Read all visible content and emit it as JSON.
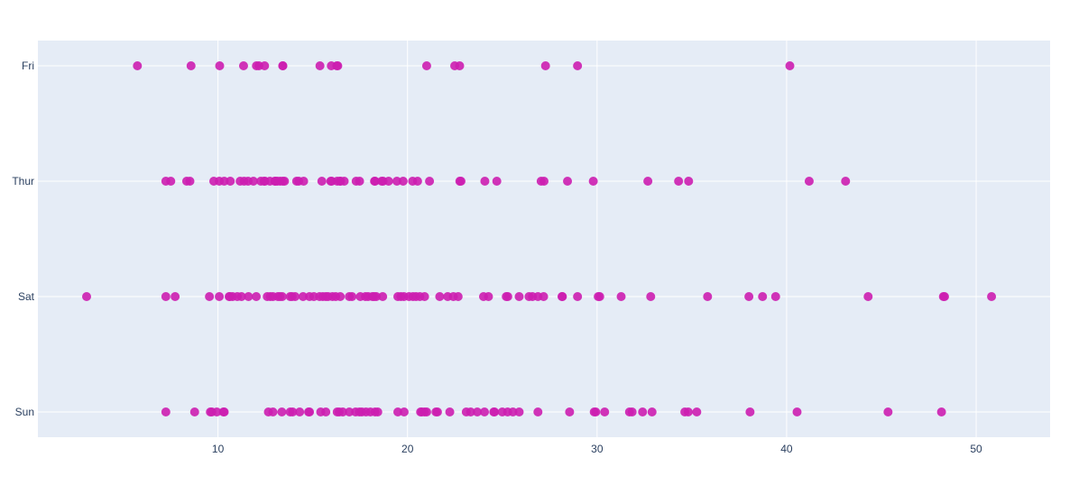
{
  "chart_data": {
    "type": "scatter",
    "orientation": "horizontal-strip",
    "title": "",
    "xlabel": "",
    "ylabel": "",
    "categories": [
      "Sun",
      "Sat",
      "Thur",
      "Fri"
    ],
    "xlim": [
      0.5,
      53.9
    ],
    "xticks": [
      10,
      20,
      30,
      40,
      50
    ],
    "grid": true,
    "legend": "none",
    "marker_color": "#cc1eb0",
    "plot_bg": "#e5ecf6",
    "grid_color": "#ffffff",
    "series": [
      {
        "category": "Fri",
        "x": [
          5.75,
          8.58,
          10.09,
          11.35,
          12.03,
          12.16,
          12.46,
          13.42,
          13.42,
          15.38,
          15.98,
          16.27,
          16.32,
          21.01,
          22.49,
          22.75,
          27.28,
          28.97,
          40.17
        ]
      },
      {
        "category": "Thur",
        "x": [
          7.25,
          7.51,
          8.35,
          8.52,
          9.78,
          10.07,
          10.33,
          10.65,
          11.17,
          11.38,
          11.59,
          11.87,
          12.26,
          12.43,
          12.48,
          12.74,
          13.0,
          13.03,
          13.13,
          13.28,
          13.42,
          13.51,
          14.15,
          14.26,
          14.52,
          15.48,
          15.95,
          16.0,
          16.29,
          16.43,
          16.47,
          16.66,
          17.29,
          17.47,
          18.26,
          18.29,
          18.64,
          18.71,
          19.0,
          19.44,
          19.77,
          20.27,
          20.53,
          21.16,
          22.76,
          22.82,
          24.08,
          24.71,
          27.05,
          27.2,
          28.44,
          29.8,
          32.68,
          34.3,
          34.83,
          41.19,
          43.11
        ]
      },
      {
        "category": "Sat",
        "x": [
          3.07,
          7.25,
          7.74,
          9.55,
          10.07,
          10.59,
          10.63,
          10.77,
          11.02,
          11.24,
          11.61,
          12.02,
          12.6,
          12.76,
          12.9,
          13.16,
          13.27,
          13.39,
          13.81,
          13.91,
          14.07,
          14.49,
          14.83,
          15.06,
          15.36,
          15.53,
          15.69,
          15.81,
          16.04,
          16.21,
          16.45,
          16.93,
          17.07,
          17.51,
          17.78,
          17.92,
          18.15,
          18.24,
          18.35,
          18.69,
          19.49,
          19.65,
          19.81,
          20.08,
          20.29,
          20.45,
          20.65,
          20.9,
          21.7,
          22.12,
          22.42,
          22.67,
          24.01,
          24.27,
          25.21,
          25.29,
          25.89,
          26.41,
          26.59,
          26.88,
          27.18,
          28.15,
          28.17,
          28.97,
          30.06,
          30.14,
          31.27,
          32.83,
          35.83,
          38.01,
          38.73,
          39.42,
          44.3,
          48.27,
          48.33,
          50.81
        ]
      },
      {
        "category": "Sun",
        "x": [
          7.25,
          8.77,
          9.6,
          9.68,
          9.94,
          10.29,
          10.33,
          12.66,
          12.9,
          13.37,
          13.81,
          13.94,
          14.31,
          14.78,
          14.83,
          15.42,
          15.69,
          16.29,
          16.4,
          16.58,
          16.93,
          17.26,
          17.46,
          17.59,
          17.81,
          18.04,
          18.29,
          18.43,
          19.49,
          19.82,
          20.69,
          20.76,
          20.9,
          21.01,
          21.5,
          21.58,
          22.23,
          23.1,
          23.33,
          23.68,
          24.06,
          24.55,
          24.59,
          25.0,
          25.28,
          25.56,
          25.89,
          26.88,
          28.55,
          29.85,
          29.93,
          30.4,
          31.71,
          31.85,
          32.4,
          32.9,
          34.63,
          34.81,
          35.26,
          38.07,
          40.55,
          45.35,
          48.17
        ]
      }
    ]
  }
}
